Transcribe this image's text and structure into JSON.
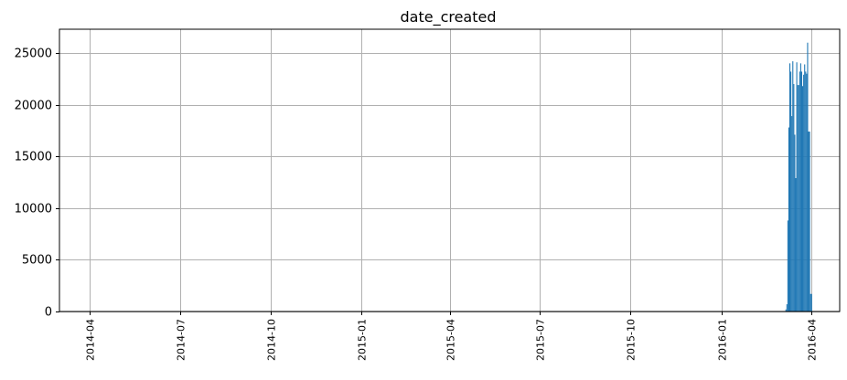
{
  "chart_data": {
    "type": "bar",
    "title": "date_created",
    "xlabel": "",
    "ylabel": "",
    "x_tick_labels": [
      "2014-04",
      "2014-07",
      "2014-10",
      "2015-01",
      "2015-04",
      "2015-07",
      "2015-10",
      "2016-01",
      "2016-04"
    ],
    "x_tick_dates": [
      "2014-04-01",
      "2014-07-01",
      "2014-10-01",
      "2015-01-01",
      "2015-04-01",
      "2015-07-01",
      "2015-10-01",
      "2016-01-01",
      "2016-04-01"
    ],
    "xlim": [
      "2014-03-01",
      "2016-04-30"
    ],
    "y_ticks": [
      0,
      5000,
      10000,
      15000,
      20000,
      25000
    ],
    "ylim": [
      0,
      27300
    ],
    "grid": true,
    "color": "#1f77b4",
    "bins": [
      {
        "start": "2016-03-05",
        "end": "2016-03-06",
        "value": 40
      },
      {
        "start": "2016-03-06",
        "end": "2016-03-07",
        "value": 200
      },
      {
        "start": "2016-03-07",
        "end": "2016-03-08",
        "value": 700
      },
      {
        "start": "2016-03-08",
        "end": "2016-03-09",
        "value": 8800
      },
      {
        "start": "2016-03-09",
        "end": "2016-03-10",
        "value": 17800
      },
      {
        "start": "2016-03-10",
        "end": "2016-03-11",
        "value": 24000
      },
      {
        "start": "2016-03-11",
        "end": "2016-03-12",
        "value": 23200
      },
      {
        "start": "2016-03-12",
        "end": "2016-03-13",
        "value": 18900
      },
      {
        "start": "2016-03-13",
        "end": "2016-03-14",
        "value": 24200
      },
      {
        "start": "2016-03-14",
        "end": "2016-03-15",
        "value": 22000
      },
      {
        "start": "2016-03-15",
        "end": "2016-03-16",
        "value": 17100
      },
      {
        "start": "2016-03-16",
        "end": "2016-03-17",
        "value": 12900
      },
      {
        "start": "2016-03-17",
        "end": "2016-03-18",
        "value": 24100
      },
      {
        "start": "2016-03-18",
        "end": "2016-03-19",
        "value": 21900
      },
      {
        "start": "2016-03-19",
        "end": "2016-03-20",
        "value": 21900
      },
      {
        "start": "2016-03-20",
        "end": "2016-03-21",
        "value": 23200
      },
      {
        "start": "2016-03-21",
        "end": "2016-03-22",
        "value": 24000
      },
      {
        "start": "2016-03-22",
        "end": "2016-03-23",
        "value": 23200
      },
      {
        "start": "2016-03-23",
        "end": "2016-03-24",
        "value": 21800
      },
      {
        "start": "2016-03-24",
        "end": "2016-03-25",
        "value": 22900
      },
      {
        "start": "2016-03-25",
        "end": "2016-03-26",
        "value": 23900
      },
      {
        "start": "2016-03-26",
        "end": "2016-03-27",
        "value": 23200
      },
      {
        "start": "2016-03-27",
        "end": "2016-03-28",
        "value": 23000
      },
      {
        "start": "2016-03-28",
        "end": "2016-03-29",
        "value": 26000
      },
      {
        "start": "2016-03-29",
        "end": "2016-03-30",
        "value": 17400
      },
      {
        "start": "2016-03-30",
        "end": "2016-03-31",
        "value": 17400
      },
      {
        "start": "2016-03-31",
        "end": "2016-04-01",
        "value": 1700
      },
      {
        "start": "2016-04-01",
        "end": "2016-04-02",
        "value": 1700
      }
    ]
  }
}
